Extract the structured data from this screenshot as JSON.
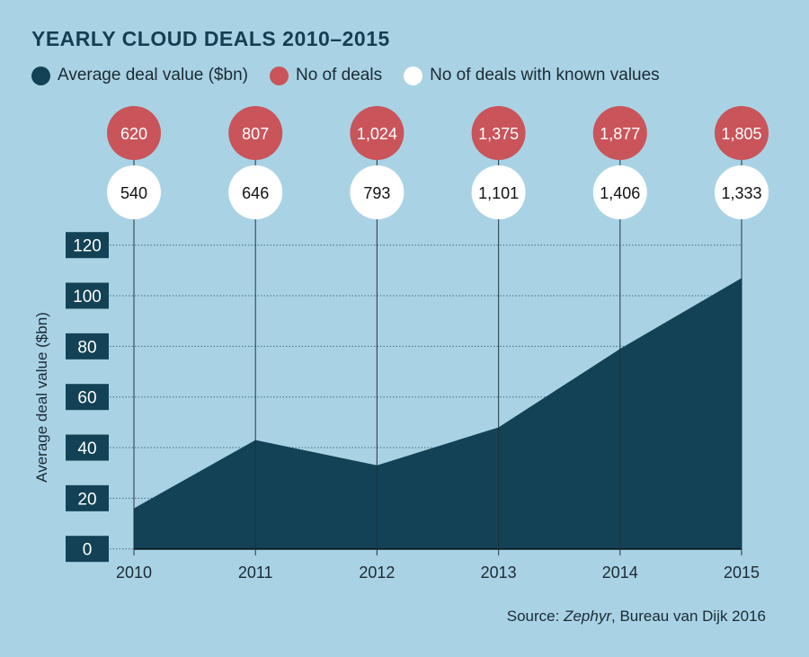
{
  "chart_data": {
    "type": "area",
    "title": "YEARLY CLOUD DEALS 2010–2015",
    "ylabel": "Average deal value ($bn)",
    "xlabel": "",
    "ylim": [
      0,
      120
    ],
    "yticks": [
      "0",
      "20",
      "40",
      "60",
      "80",
      "100",
      "120"
    ],
    "grid": true,
    "legend_placement": "top",
    "categories": [
      "2010",
      "2011",
      "2012",
      "2013",
      "2014",
      "2015"
    ],
    "series": [
      {
        "name": "Average deal value ($bn)",
        "values": [
          16,
          43,
          33,
          48,
          79,
          107
        ],
        "color": "#134256"
      },
      {
        "name": "No of deals",
        "labels": [
          "620",
          "807",
          "1,024",
          "1,375",
          "1,877",
          "1,805"
        ],
        "values": [
          620,
          807,
          1024,
          1375,
          1877,
          1805
        ],
        "color": "#c9545a"
      },
      {
        "name": "No of deals with known values",
        "labels": [
          "540",
          "646",
          "793",
          "1,101",
          "1,406",
          "1,333"
        ],
        "values": [
          540,
          646,
          793,
          1101,
          1406,
          1333
        ],
        "color": "#ffffff"
      }
    ],
    "source_prefix": "Source: ",
    "source_italic": "Zephyr",
    "source_suffix": ", Bureau van Dijk 2016"
  }
}
